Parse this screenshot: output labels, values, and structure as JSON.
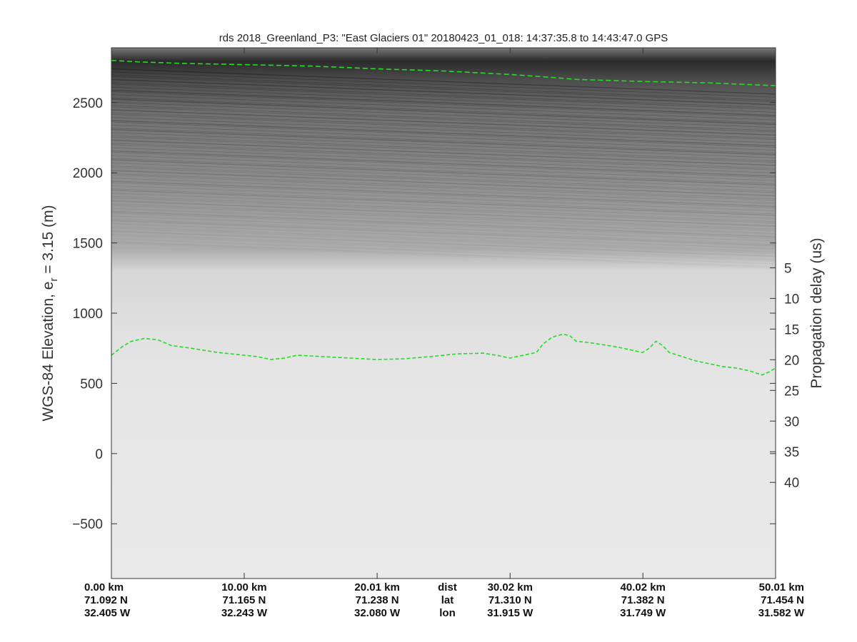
{
  "chart_data": {
    "type": "radargram",
    "title": "rds 2018_Greenland_P3: \"East Glaciers 01\"  20180423_01_018: 14:37:35.8 to 14:43:47.0 GPS",
    "ylabel_main": "WGS-84 Elevation, e",
    "ylabel_sub": "r",
    "ylabel_tail": " = 3.15 (m)",
    "ylabel_right": "Propagation delay (us)",
    "ylim": [
      -890,
      2890
    ],
    "y_ticks": [
      2500,
      2000,
      1500,
      1000,
      500,
      0,
      -500
    ],
    "right_axis": {
      "delay_per_m": 0.0229,
      "delay_at_0m": 35.3
    },
    "right_ticks": [
      5,
      10,
      15,
      20,
      25,
      30,
      35,
      40
    ],
    "xlim": [
      0,
      50.01
    ],
    "x_ticks": [
      {
        "dist": "0.00 km",
        "lat": "71.092 N",
        "lon": "32.405 W",
        "x": 0.0
      },
      {
        "dist": "10.00 km",
        "lat": "71.165 N",
        "lon": "32.243 W",
        "x": 10.0
      },
      {
        "dist": "20.01 km",
        "lat": "71.238 N",
        "lon": "32.080 W",
        "x": 20.01
      },
      {
        "dist": "30.02 km",
        "lat": "71.310 N",
        "lon": "31.915 W",
        "x": 30.02
      },
      {
        "dist": "40.02 km",
        "lat": "71.382 N",
        "lon": "31.749 W",
        "x": 40.02
      },
      {
        "dist": "50.01 km",
        "lat": "71.454 N",
        "lon": "31.582 W",
        "x": 50.01
      }
    ],
    "row_labels": {
      "dist": "dist",
      "lat": "lat",
      "lon": "lon"
    },
    "row_label_x": 25.3,
    "surface_layer": {
      "color": "#22dd22",
      "style": "dashed",
      "points": [
        [
          0,
          2800
        ],
        [
          2,
          2790
        ],
        [
          5,
          2780
        ],
        [
          10,
          2770
        ],
        [
          15,
          2760
        ],
        [
          20,
          2740
        ],
        [
          25,
          2725
        ],
        [
          30,
          2700
        ],
        [
          33,
          2680
        ],
        [
          35,
          2665
        ],
        [
          40,
          2650
        ],
        [
          45,
          2640
        ],
        [
          50.01,
          2620
        ]
      ]
    },
    "bed_layer": {
      "color": "#22dd22",
      "style": "dashed",
      "points": [
        [
          0,
          700
        ],
        [
          0.8,
          760
        ],
        [
          1.5,
          800
        ],
        [
          2.5,
          820
        ],
        [
          3.5,
          810
        ],
        [
          4.5,
          770
        ],
        [
          6,
          750
        ],
        [
          8,
          720
        ],
        [
          10,
          700
        ],
        [
          11,
          690
        ],
        [
          12,
          670
        ],
        [
          13,
          680
        ],
        [
          14,
          700
        ],
        [
          15,
          695
        ],
        [
          16,
          690
        ],
        [
          18,
          680
        ],
        [
          20,
          670
        ],
        [
          22,
          675
        ],
        [
          24,
          690
        ],
        [
          26,
          710
        ],
        [
          28,
          715
        ],
        [
          29,
          700
        ],
        [
          30,
          680
        ],
        [
          31,
          700
        ],
        [
          32,
          720
        ],
        [
          32.5,
          780
        ],
        [
          33.2,
          830
        ],
        [
          34,
          850
        ],
        [
          34.5,
          840
        ],
        [
          35,
          800
        ],
        [
          36,
          790
        ],
        [
          38,
          760
        ],
        [
          40,
          720
        ],
        [
          40.5,
          750
        ],
        [
          41,
          800
        ],
        [
          41.5,
          770
        ],
        [
          42,
          720
        ],
        [
          43,
          690
        ],
        [
          44,
          660
        ],
        [
          45,
          640
        ],
        [
          46,
          620
        ],
        [
          47,
          610
        ],
        [
          48,
          590
        ],
        [
          49,
          560
        ],
        [
          49.5,
          580
        ],
        [
          50.01,
          610
        ]
      ]
    },
    "grid": false,
    "legend": "none",
    "colormap": "grayscale"
  }
}
